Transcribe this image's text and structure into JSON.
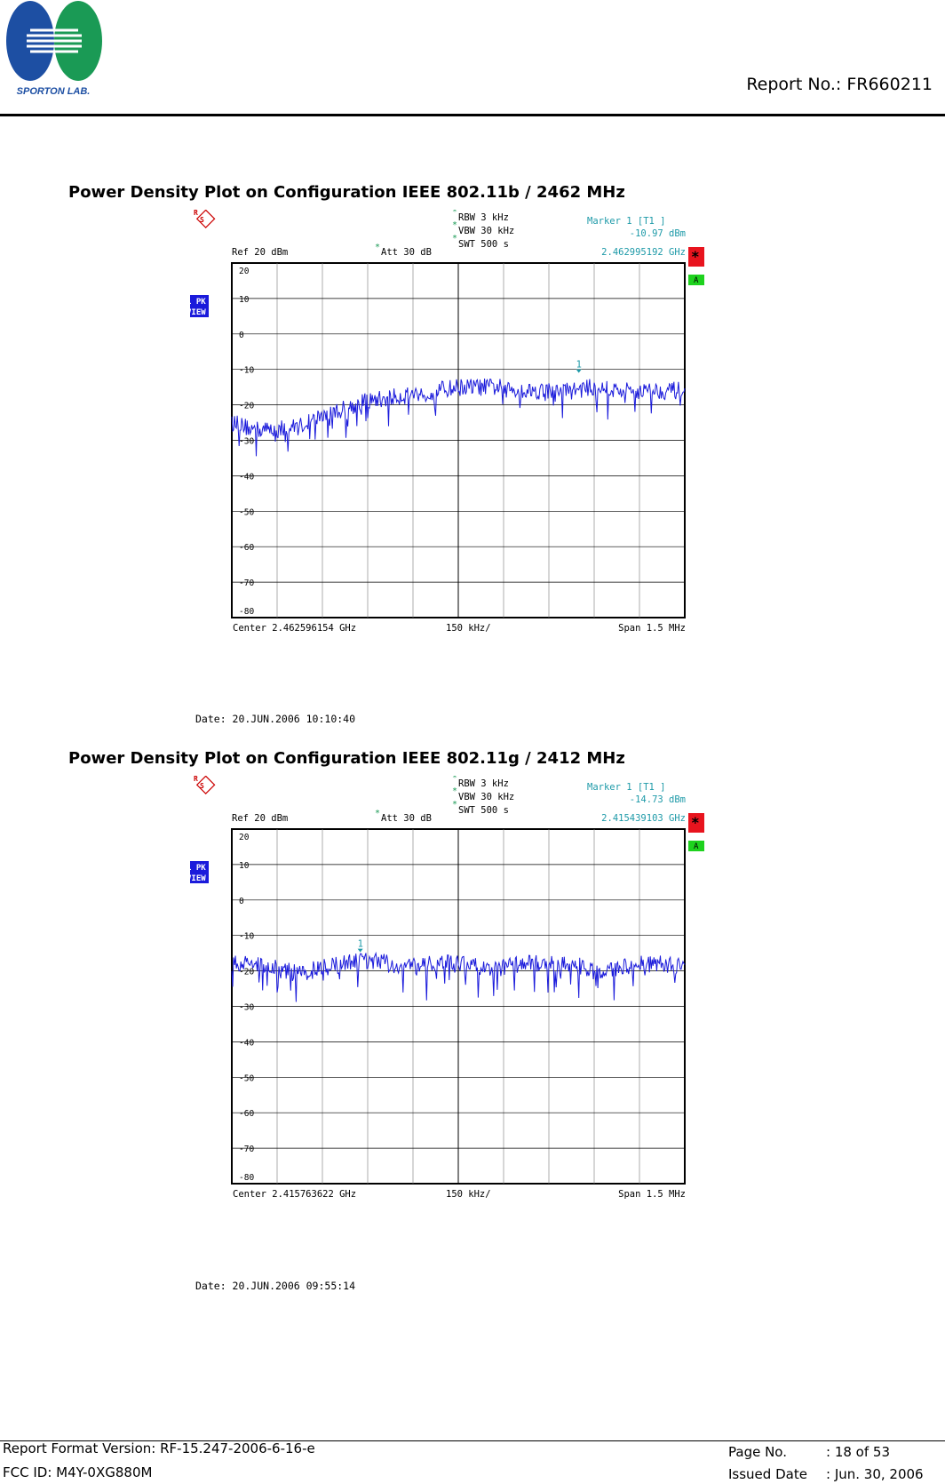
{
  "header": {
    "logo_text": "SPORTON LAB.",
    "report_no": "Report No.: FR660211"
  },
  "plots": [
    {
      "title": "Power Density Plot on Configuration IEEE 802.11b / 2462 MHz",
      "rbw": "RBW  3 kHz",
      "vbw": "VBW  30 kHz",
      "swt": "SWT  500 s",
      "ref": "Ref   20 dBm",
      "att": "Att   30 dB",
      "marker_label": "Marker 1 [T1 ]",
      "marker_level": "-10.97 dBm",
      "marker_freq": "2.462995192 GHz",
      "marker_num": "1",
      "center": "Center  2.462596154 GHz",
      "div": "150 kHz/",
      "span": "Span  1.5 MHz",
      "trace_mode_1": "1 PK",
      "trace_mode_2": "VIEW",
      "star_badge": "*",
      "a_badge": "A",
      "date": "Date: 20.JUN.2006  10:10:40",
      "y_ticks": [
        "20",
        "10",
        "0",
        "-10",
        "-20",
        "-30",
        "-40",
        "-50",
        "-60",
        "-70",
        "-80"
      ]
    },
    {
      "title": "Power Density Plot on Configuration IEEE 802.11g / 2412 MHz",
      "rbw": "RBW  3 kHz",
      "vbw": "VBW  30 kHz",
      "swt": "SWT  500 s",
      "ref": "Ref   20 dBm",
      "att": "Att   30 dB",
      "marker_label": "Marker 1 [T1 ]",
      "marker_level": "-14.73 dBm",
      "marker_freq": "2.415439103 GHz",
      "marker_num": "1",
      "center": "Center  2.415763622 GHz",
      "div": "150 kHz/",
      "span": "Span  1.5 MHz",
      "trace_mode_1": "1 PK",
      "trace_mode_2": "VIEW",
      "star_badge": "*",
      "a_badge": "A",
      "date": "Date: 20.JUN.2006  09:55:14",
      "y_ticks": [
        "20",
        "10",
        "0",
        "-10",
        "-20",
        "-30",
        "-40",
        "-50",
        "-60",
        "-70",
        "-80"
      ]
    }
  ],
  "chart_data": [
    {
      "type": "line",
      "title": "Power Density Plot on Configuration IEEE 802.11b / 2462 MHz",
      "xlabel": "",
      "ylabel": "",
      "ylim": [
        -80,
        20
      ],
      "xlim_ghz": [
        2.461846154,
        2.463346154
      ],
      "grid": true,
      "colors": {
        "trace": "#1a1adb",
        "marker": "#1e9aa8",
        "grid": "#000000"
      },
      "series": [
        {
          "x_ghz": [
            2.461846,
            2.461921,
            2.461996,
            2.462071,
            2.462146,
            2.462221,
            2.462296,
            2.462371,
            2.462446,
            2.462521,
            2.462596,
            2.462671,
            2.462746,
            2.462821,
            2.462896,
            2.462971,
            2.463046,
            2.463121,
            2.463196,
            2.463271,
            2.463346
          ],
          "values_dbm": [
            -25,
            -27,
            -27,
            -26,
            -23,
            -21,
            -19,
            -18,
            -17,
            -16,
            -15,
            -15,
            -15,
            -16,
            -16,
            -16,
            -15,
            -16,
            -16,
            -16,
            -16
          ]
        }
      ],
      "marker": {
        "x_ghz": 2.462995192,
        "y_dbm": -10.97
      }
    },
    {
      "type": "line",
      "title": "Power Density Plot on Configuration IEEE 802.11g / 2412 MHz",
      "xlabel": "",
      "ylabel": "",
      "ylim": [
        -80,
        20
      ],
      "xlim_ghz": [
        2.415013622,
        2.416513622
      ],
      "grid": true,
      "colors": {
        "trace": "#1a1adb",
        "marker": "#1e9aa8",
        "grid": "#000000"
      },
      "series": [
        {
          "x_ghz": [
            2.415014,
            2.415089,
            2.415164,
            2.415239,
            2.415314,
            2.415389,
            2.415464,
            2.415539,
            2.415614,
            2.415689,
            2.415764,
            2.415839,
            2.415914,
            2.415989,
            2.416064,
            2.416139,
            2.416214,
            2.416289,
            2.416364,
            2.416439,
            2.416514
          ],
          "values_dbm": [
            -18,
            -18,
            -19,
            -21,
            -19,
            -18,
            -17,
            -18,
            -19,
            -18,
            -18,
            -19,
            -19,
            -18,
            -18,
            -18,
            -20,
            -19,
            -18,
            -18,
            -19
          ]
        }
      ],
      "marker": {
        "x_ghz": 2.415439103,
        "y_dbm": -14.73
      }
    }
  ],
  "footer": {
    "format_version": "Report Format Version: RF-15.247-2006-6-16-e",
    "fcc_id": "FCC ID: M4Y-0XG880M",
    "page_no_label": "Page No.",
    "page_no_value": ": 18 of 53",
    "issued_date_label": "Issued Date",
    "issued_date_value": ": Jun. 30, 2006"
  }
}
